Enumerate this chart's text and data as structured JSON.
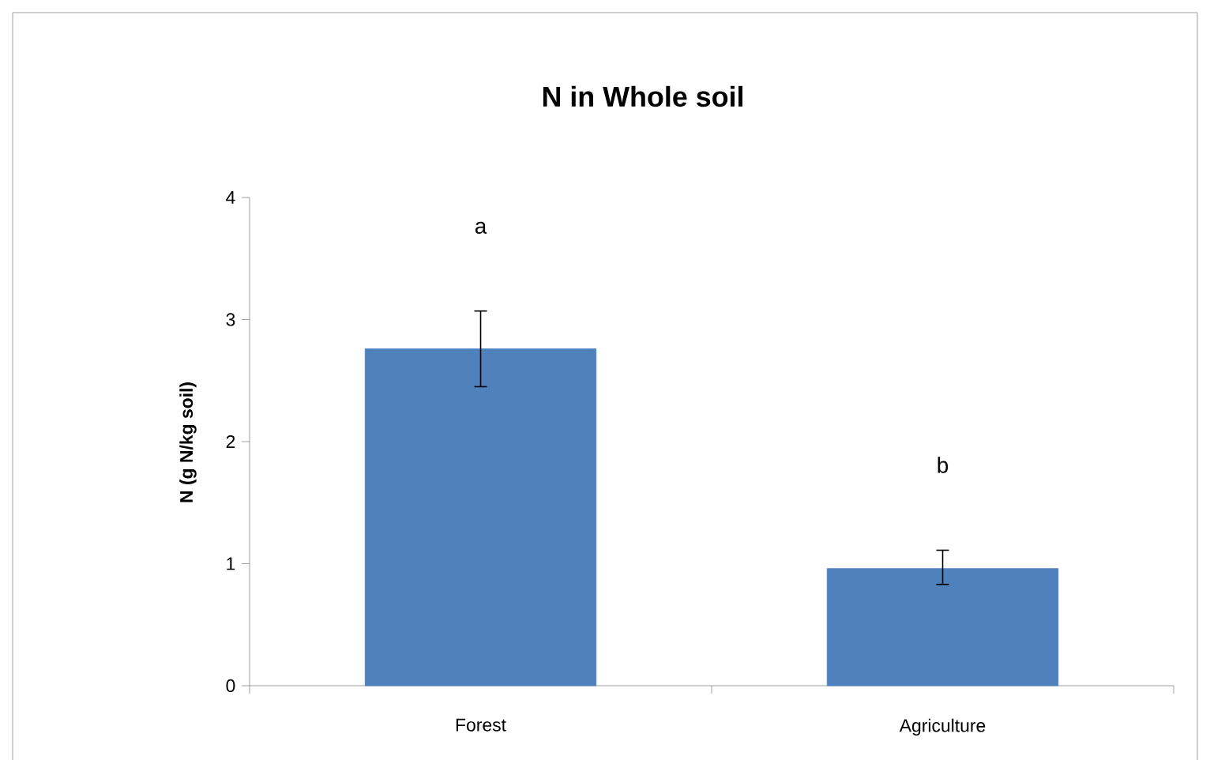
{
  "chart_data": {
    "type": "bar",
    "title": "N in Whole soil",
    "ylabel": "N (g N/kg soil)",
    "categories": [
      "Forest",
      "Agriculture"
    ],
    "values": [
      2.76,
      0.96
    ],
    "errors": [
      [
        2.45,
        3.07
      ],
      [
        0.83,
        1.11
      ]
    ],
    "color": "#4f81bd",
    "ylim": [
      0,
      4
    ],
    "yticks": [
      0,
      1,
      2,
      3,
      4
    ],
    "annotations": [
      "a",
      "b"
    ],
    "grid": false
  }
}
